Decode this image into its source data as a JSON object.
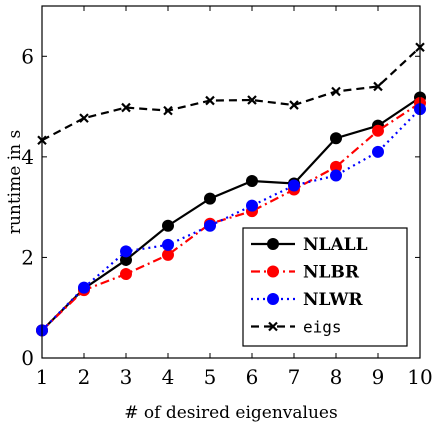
{
  "chart_data": {
    "type": "line",
    "title": "",
    "xlabel": "# of desired eigenvalues",
    "ylabel": "runtime in s",
    "xlim": [
      1,
      10
    ],
    "ylim": [
      0,
      7
    ],
    "xticks": [
      "1",
      "2",
      "3",
      "4",
      "5",
      "6",
      "7",
      "8",
      "9",
      "10"
    ],
    "yticks": [
      "0",
      "2",
      "4",
      "6"
    ],
    "grid": false,
    "legend_position": "bottom-right",
    "x": [
      1,
      2,
      3,
      4,
      5,
      6,
      7,
      8,
      9,
      10
    ],
    "series": [
      {
        "name": "NLALL",
        "color": "#000000",
        "marker": "circle",
        "dash": "solid",
        "values": [
          0.55,
          1.38,
          1.95,
          2.63,
          3.17,
          3.52,
          3.47,
          4.37,
          4.62,
          5.18
        ]
      },
      {
        "name": "NLBR",
        "color": "#ff0000",
        "marker": "circle",
        "dash": "dashdot",
        "values": [
          0.55,
          1.35,
          1.67,
          2.05,
          2.67,
          2.92,
          3.35,
          3.8,
          4.52,
          5.07
        ]
      },
      {
        "name": "NLWR",
        "color": "#0000ff",
        "marker": "circle",
        "dash": "dotted",
        "values": [
          0.55,
          1.4,
          2.12,
          2.25,
          2.63,
          3.03,
          3.43,
          3.63,
          4.1,
          4.95
        ]
      },
      {
        "name": "eigs",
        "color": "#000000",
        "marker": "x",
        "dash": "dashed",
        "values": [
          4.33,
          4.77,
          4.98,
          4.92,
          5.12,
          5.13,
          5.03,
          5.3,
          5.4,
          6.18
        ]
      }
    ]
  }
}
